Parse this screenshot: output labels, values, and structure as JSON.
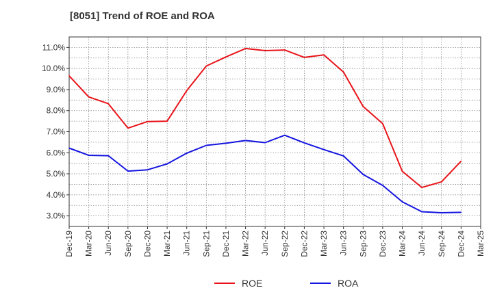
{
  "chart_data": {
    "type": "line",
    "title": "[8051]  Trend of ROE and ROA",
    "xlabel": "",
    "ylabel": "",
    "categories": [
      "Dec-19",
      "Mar-20",
      "Jun-20",
      "Sep-20",
      "Dec-20",
      "Mar-21",
      "Jun-21",
      "Sep-21",
      "Dec-21",
      "Mar-22",
      "Jun-22",
      "Sep-22",
      "Dec-22",
      "Mar-23",
      "Jun-23",
      "Sep-23",
      "Dec-23",
      "Mar-24",
      "Jun-24",
      "Sep-24",
      "Dec-24",
      "Mar-25"
    ],
    "ylim": [
      2.5,
      11.5
    ],
    "yticks": [
      3.0,
      4.0,
      5.0,
      6.0,
      7.0,
      8.0,
      9.0,
      10.0,
      11.0
    ],
    "ytick_labels": [
      "3.0%",
      "4.0%",
      "5.0%",
      "6.0%",
      "7.0%",
      "8.0%",
      "9.0%",
      "10.0%",
      "11.0%"
    ],
    "grid": true,
    "legend_position": "bottom-center",
    "series": [
      {
        "name": "ROE",
        "color": "#e8141a",
        "values": [
          9.65,
          8.65,
          8.33,
          7.17,
          7.48,
          7.5,
          8.95,
          10.12,
          10.55,
          10.95,
          10.85,
          10.88,
          10.53,
          10.65,
          9.83,
          8.2,
          7.38,
          5.12,
          4.35,
          4.62,
          5.6,
          null
        ]
      },
      {
        "name": "ROA",
        "color": "#1414e0",
        "values": [
          6.22,
          5.88,
          5.86,
          5.13,
          5.19,
          5.47,
          5.98,
          6.35,
          6.45,
          6.58,
          6.48,
          6.83,
          6.47,
          6.15,
          5.85,
          4.97,
          4.45,
          3.67,
          3.2,
          3.15,
          3.17,
          null
        ]
      }
    ]
  }
}
